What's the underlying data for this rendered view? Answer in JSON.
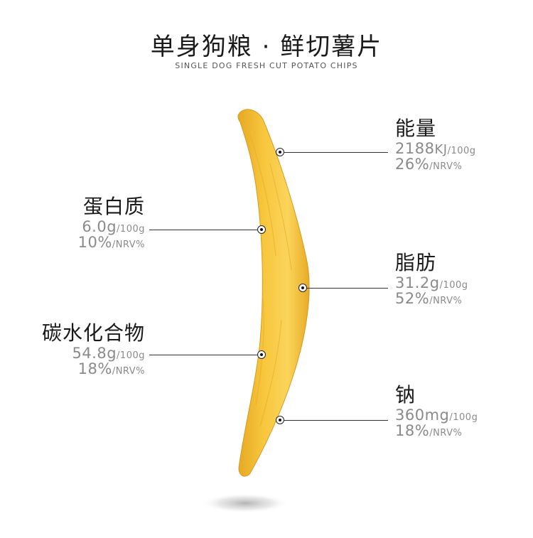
{
  "header": {
    "title": "单身狗粮 · 鲜切薯片",
    "subtitle": "SINGLE DOG FRESH CUT POTATO CHIPS"
  },
  "colors": {
    "chip": "#f5c33b",
    "chip_highlight": "#fbd862",
    "chip_shadow": "#e0a21f",
    "label_gray": "#8a8a8a",
    "text_dark": "#1a1a1a"
  },
  "nutrients": {
    "energy": {
      "name": "能量",
      "value": "2188",
      "unit": "KJ",
      "per": "/100g",
      "percent": "26%",
      "nrv": "/NRV%"
    },
    "protein": {
      "name": "蛋白质",
      "value": "6.0g",
      "per": "/100g",
      "percent": "10%",
      "nrv": "/NRV%"
    },
    "fat": {
      "name": "脂肪",
      "value": "31.2g",
      "per": "/100g",
      "percent": "52%",
      "nrv": "/NRV%"
    },
    "carbohydrate": {
      "name": "碳水化合物",
      "value": "54.8g",
      "per": "/100g",
      "percent": "18%",
      "nrv": "/NRV%"
    },
    "sodium": {
      "name": "钠",
      "value": "360mg",
      "per": "/100g",
      "percent": "18%",
      "nrv": "/NRV%"
    }
  }
}
